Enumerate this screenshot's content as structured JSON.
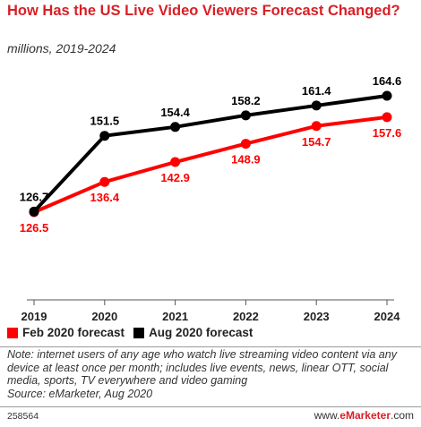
{
  "chart_data": {
    "type": "line",
    "title": "How Has the US Live Video Viewers Forecast Changed?",
    "subtitle": "millions, 2019-2024",
    "categories": [
      "2019",
      "2020",
      "2021",
      "2022",
      "2023",
      "2024"
    ],
    "series": [
      {
        "name": "Feb 2020 forecast",
        "color": "#ff0000",
        "values": [
          126.5,
          136.4,
          142.9,
          148.9,
          154.7,
          157.6
        ]
      },
      {
        "name": "Aug 2020 forecast",
        "color": "#000000",
        "values": [
          126.7,
          151.5,
          154.4,
          158.2,
          161.4,
          164.6
        ]
      }
    ],
    "legend_placement": "bottom-left",
    "grid": false
  },
  "note": "Note: internet users of any age who watch live streaming video content via any device at least once per month; includes live events, news, linear OTT, social media, sports, TV everywhere and video gaming",
  "source": "Source: eMarketer, Aug 2020",
  "chart_id": "258564",
  "brand": {
    "prefix": "www.",
    "name": "eMarketer",
    "suffix": ".com"
  }
}
